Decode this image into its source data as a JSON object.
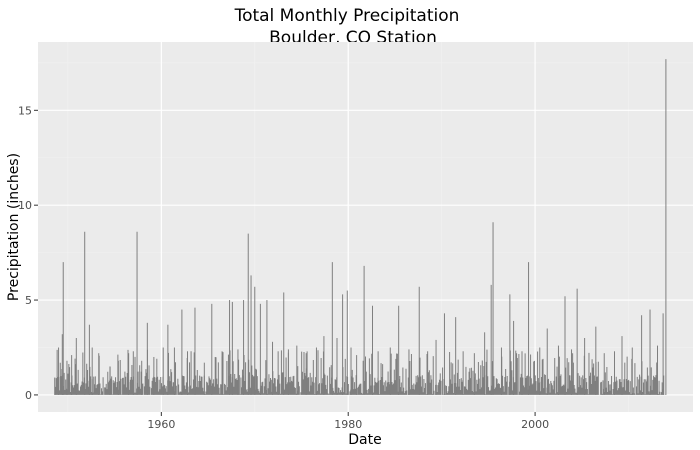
{
  "chart_data": {
    "type": "bar",
    "title": "Total Monthly Precipitation",
    "subtitle": "Boulder, CO Station",
    "xlabel": "Date",
    "ylabel": "Precipitation (inches)",
    "xlim": [
      1946.8,
      2016.9
    ],
    "ylim": [
      -0.9,
      18.6
    ],
    "x_ticks": [
      1960,
      1980,
      2000
    ],
    "y_ticks": [
      0,
      5,
      10,
      15
    ],
    "x_tick_labels": [
      "1960",
      "1980",
      "2000"
    ],
    "y_tick_labels": [
      "0",
      "5",
      "10",
      "15"
    ],
    "grid": true,
    "legend": "none",
    "panel_color": "#ebebeb",
    "grid_color": "#ffffff",
    "bar_color": "#7f7f7f",
    "series": [
      {
        "x": [
          1948.6,
          1949.0,
          1949.4,
          1949.5,
          1949.9,
          1950.4,
          1950.9,
          1951.8,
          1952.3,
          1952.6,
          1953.3,
          1954.5,
          1955.4,
          1956.5,
          1957.0,
          1957.4,
          1957.9,
          1958.5,
          1959.2,
          1960.2,
          1960.7,
          1961.4,
          1962.2,
          1962.8,
          1963.6,
          1964.6,
          1965.4,
          1966.5,
          1967.3,
          1967.6,
          1968.2,
          1968.8,
          1969.3,
          1969.6,
          1970.0,
          1970.6,
          1971.3,
          1971.9,
          1972.5,
          1973.1,
          1973.6,
          1974.5,
          1975.5,
          1976.6,
          1977.4,
          1978.3,
          1978.8,
          1979.4,
          1979.9,
          1980.3,
          1980.9,
          1981.7,
          1982.6,
          1983.2,
          1984.5,
          1985.4,
          1986.5,
          1987.6,
          1988.5,
          1989.4,
          1990.3,
          1991.5,
          1992.3,
          1993.5,
          1994.6,
          1995.3,
          1995.5,
          1996.4,
          1997.3,
          1997.7,
          1998.6,
          1999.3,
          2000.5,
          2001.3,
          2002.5,
          2003.2,
          2003.9,
          2004.5,
          2005.3,
          2006.5,
          2007.4,
          2008.5,
          2009.3,
          2010.4,
          2011.4,
          2012.3,
          2013.1,
          2013.7,
          2014.0
        ],
        "values": [
          0.9,
          2.5,
          3.2,
          7.0,
          1.8,
          2.1,
          3.0,
          8.6,
          3.7,
          2.5,
          2.2,
          1.5,
          1.8,
          2.2,
          2.3,
          8.6,
          1.8,
          3.8,
          2.0,
          2.5,
          3.7,
          2.5,
          4.5,
          2.3,
          4.6,
          1.7,
          4.8,
          2.3,
          5.0,
          4.9,
          2.4,
          5.0,
          8.5,
          6.3,
          5.7,
          4.8,
          5.0,
          2.8,
          2.3,
          5.4,
          2.4,
          2.6,
          2.2,
          2.5,
          3.1,
          7.0,
          3.0,
          5.3,
          5.5,
          2.5,
          2.1,
          6.8,
          4.7,
          2.3,
          2.5,
          4.7,
          2.4,
          5.7,
          2.3,
          2.9,
          4.3,
          4.1,
          2.3,
          2.2,
          3.3,
          5.8,
          9.1,
          2.5,
          5.3,
          3.9,
          2.3,
          7.0,
          2.5,
          3.5,
          2.6,
          5.2,
          2.4,
          5.6,
          3.0,
          3.6,
          2.2,
          2.3,
          3.1,
          2.5,
          4.2,
          4.5,
          2.6,
          4.3,
          17.7
        ]
      }
    ]
  }
}
